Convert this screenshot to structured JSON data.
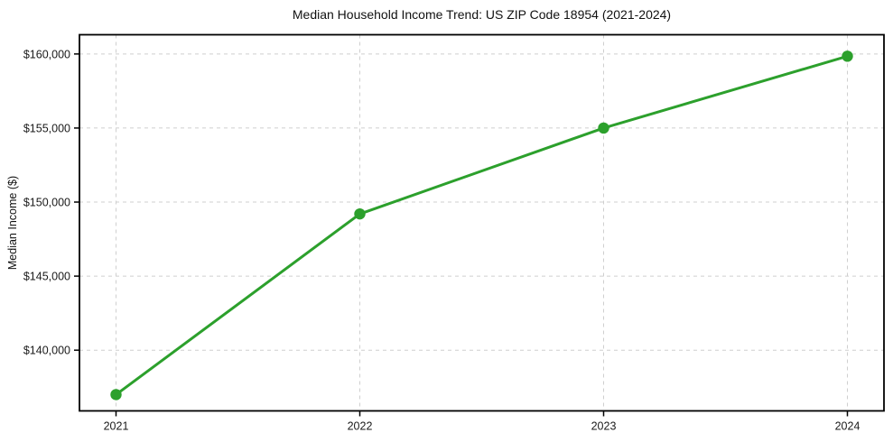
{
  "chart_data": {
    "type": "line",
    "title": "Median Household Income Trend: US ZIP Code 18954 (2021-2024)",
    "xlabel": "",
    "ylabel": "Median Income ($)",
    "x": [
      2021,
      2022,
      2023,
      2024
    ],
    "series": [
      {
        "name": "Median Household Income",
        "values": [
          137000,
          149200,
          155000,
          159850
        ]
      }
    ],
    "xticks": {
      "values": [
        2021,
        2022,
        2023,
        2024
      ],
      "labels": [
        "2021",
        "2022",
        "2023",
        "2024"
      ]
    },
    "yticks": {
      "values": [
        140000,
        145000,
        150000,
        155000,
        160000
      ],
      "labels": [
        "$140,000",
        "$145,000",
        "$150,000",
        "$155,000",
        "$160,000"
      ]
    },
    "xlim": [
      2020.85,
      2024.15
    ],
    "ylim": [
      135900,
      161300
    ],
    "grid": true,
    "grid_style": "dashed",
    "legend_position": "none",
    "line_color": "#2ca02c",
    "marker_color": "#2ca02c",
    "grid_color": "#cfcfcf",
    "axis_color": "#000000",
    "tick_label_color": "#1a1a1a",
    "background_color": "#ffffff"
  }
}
